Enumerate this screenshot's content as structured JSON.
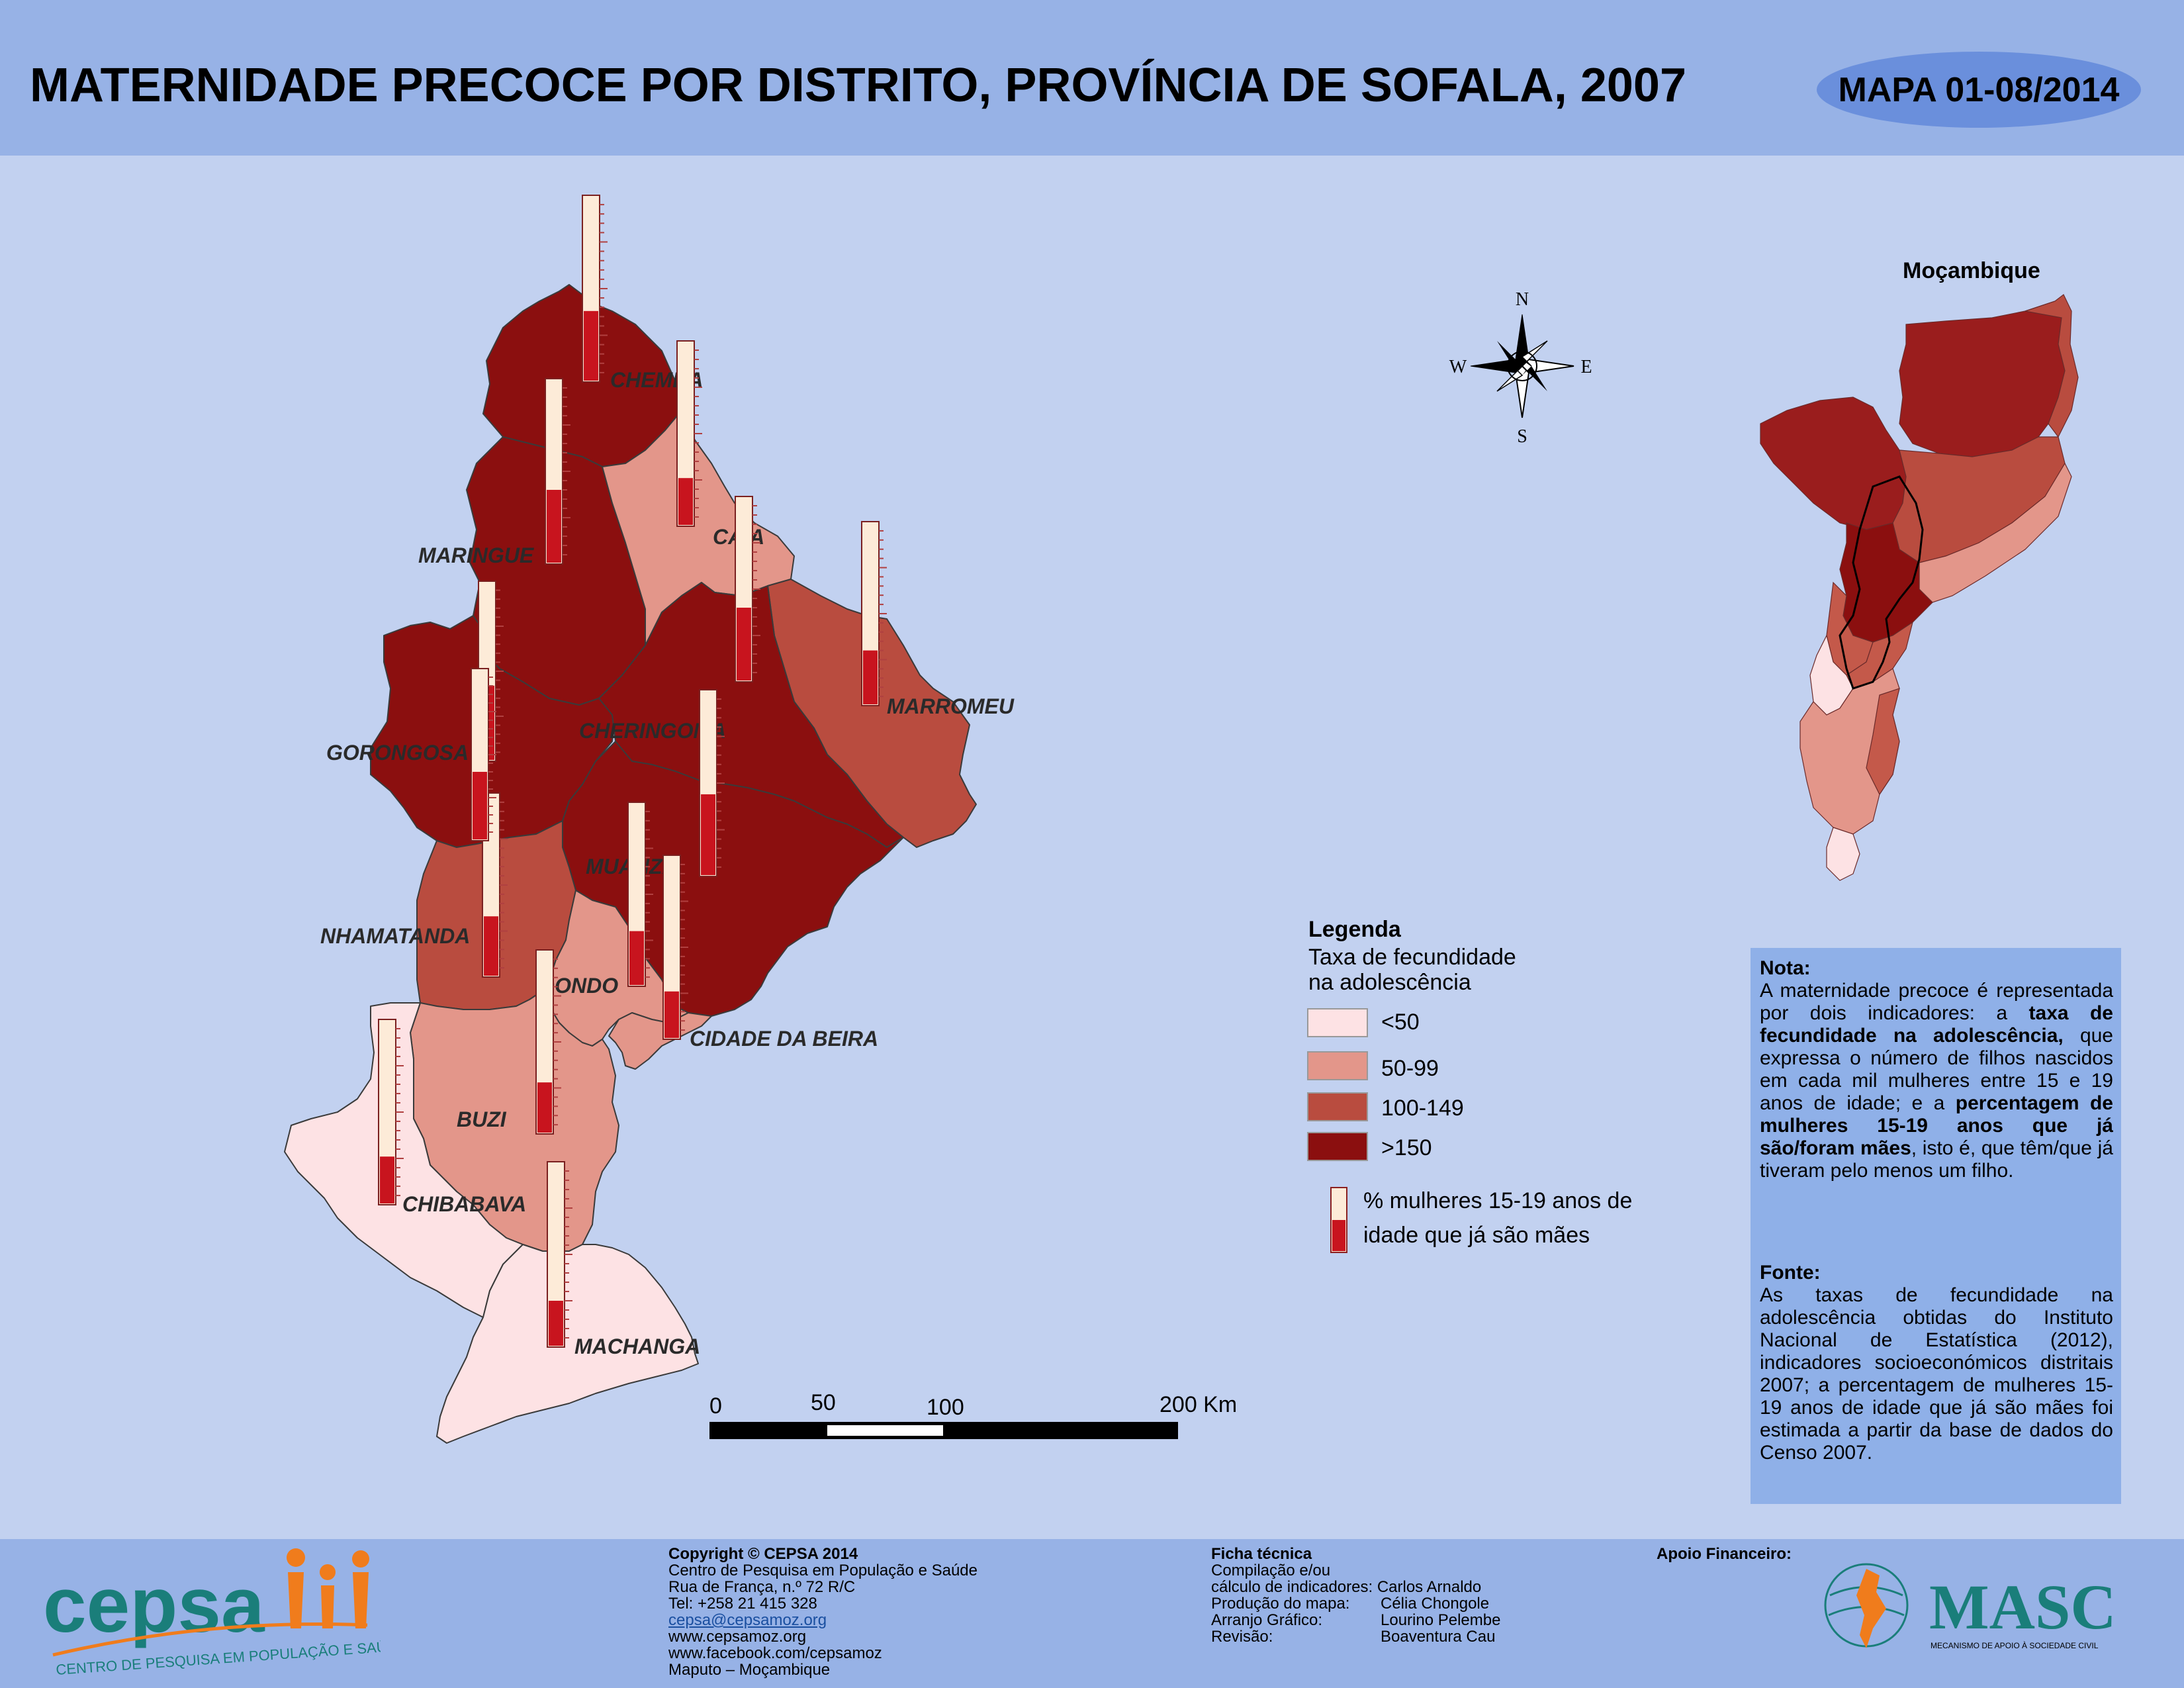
{
  "header": {
    "title": "MATERNIDADE PRECOCE POR DISTRITO, PROVÍNCIA DE SOFALA, 2007",
    "map_id": "MAPA 01-08/2014"
  },
  "colors": {
    "lt50": "#fde2e4",
    "c50_99": "#e3968a",
    "c100_149": "#b94c3f",
    "gt150": "#8b0f0f",
    "thermo_fill": "#c8141e",
    "thermo_empty": "#fdebd8",
    "water": "#c2d1f0"
  },
  "districts": [
    {
      "name": "CHEMBA",
      "class": "gt150",
      "thermo_pct": 38
    },
    {
      "name": "MARINGUE",
      "class": "gt150",
      "thermo_pct": 40
    },
    {
      "name": "CAIA",
      "class": "c50_99",
      "thermo_pct": 26
    },
    {
      "name": "MARROMEU",
      "class": "c100_149",
      "thermo_pct": 30
    },
    {
      "name": "GORONGOSA",
      "class": "gt150",
      "thermo_pct": 42
    },
    {
      "name": "CHERINGOMA",
      "class": "gt150",
      "thermo_pct": 40
    },
    {
      "name": "MUANZA",
      "class": "gt150",
      "thermo_pct": 44
    },
    {
      "name": "NHAMATANDA",
      "class": "c100_149",
      "thermo_pct": 33
    },
    {
      "name": "DONDO",
      "class": "c50_99",
      "thermo_pct": 30
    },
    {
      "name": "CIDADE DA BEIRA",
      "class": "c50_99",
      "thermo_pct": 26
    },
    {
      "name": "BUZI",
      "class": "c50_99",
      "thermo_pct": 28
    },
    {
      "name": "CHIBABAVA",
      "class": "lt50",
      "thermo_pct": 26
    },
    {
      "name": "MACHANGA",
      "class": "lt50",
      "thermo_pct": 25
    }
  ],
  "extra_thermo_pct": 40,
  "compass": {
    "n": "N",
    "s": "S",
    "e": "E",
    "w": "W"
  },
  "scale": {
    "t0": "0",
    "t50": "50",
    "t100": "100",
    "t200": "200 Km"
  },
  "inset": {
    "title": "Moçambique"
  },
  "legend": {
    "title": "Legenda",
    "subtitle1": "Taxa de fecundidade",
    "subtitle2": "na adolescência",
    "classes": [
      {
        "label": "<50",
        "color": "#fde2e4"
      },
      {
        "label": " 50-99",
        "color": "#e3968a"
      },
      {
        "label": "100-149",
        "color": "#b94c3f"
      },
      {
        "label": ">150",
        "color": "#8b0f0f"
      }
    ],
    "thermo_label1": "% mulheres 15-19 anos de",
    "thermo_label2": "idade que já são mães"
  },
  "note": {
    "nota_title": "Nota:",
    "nota_p1": "A maternidade precoce é representada por dois indicadores: a",
    "nota_b1": "taxa de fecundidade na adolescência,",
    "nota_p2": "que expressa o número de filhos nascidos em cada mil mulheres entre 15 e 19 anos de idade; e a",
    "nota_b2": "percentagem de mulheres 15-19 anos que já são/foram mães",
    "nota_p3": ", isto é, que têm/que já tiveram pelo menos um filho.",
    "fonte_title": "Fonte:",
    "fonte_text": "As taxas de fecundidade na adolescência obtidas do Instituto Nacional de Estatística (2012), indicadores socioeconómicos distritais 2007; a percentagem de mulheres 15-19 anos de idade que já são mães foi estimada a partir da base de dados do Censo 2007."
  },
  "footer": {
    "logo_text": "cepsa",
    "logo_sub": "CENTRO DE PESQUISA EM POPULAÇÃO E SAÚDE",
    "copyright": "Copyright © CEPSA 2014",
    "org": "Centro de Pesquisa em População e Saúde",
    "address": "Rua de França, n.º 72 R/C",
    "tel": "Tel: +258 21 415 328",
    "email": "cepsa@cepsamoz.org",
    "web": "www.cepsamoz.org",
    "facebook": "www.facebook.com/cepsamoz",
    "city": "Maputo – Moçambique",
    "ficha_title": "Ficha técnica",
    "ficha_l1": "Compilação e/ou",
    "ficha_l2": "cálculo de indicadores: Carlos Arnaldo",
    "ficha_l3k": "Produção do mapa:",
    "ficha_l3v": "Célia Chongole",
    "ficha_l4k": "Arranjo Gráfico:",
    "ficha_l4v": "Lourino Pelembe",
    "ficha_l5k": "Revisão:",
    "ficha_l5v": "Boaventura Cau",
    "apoio": "Apoio Financeiro:",
    "masc": "MASC",
    "masc_sub": "MECANISMO DE APOIO À SOCIEDADE CIVIL"
  }
}
